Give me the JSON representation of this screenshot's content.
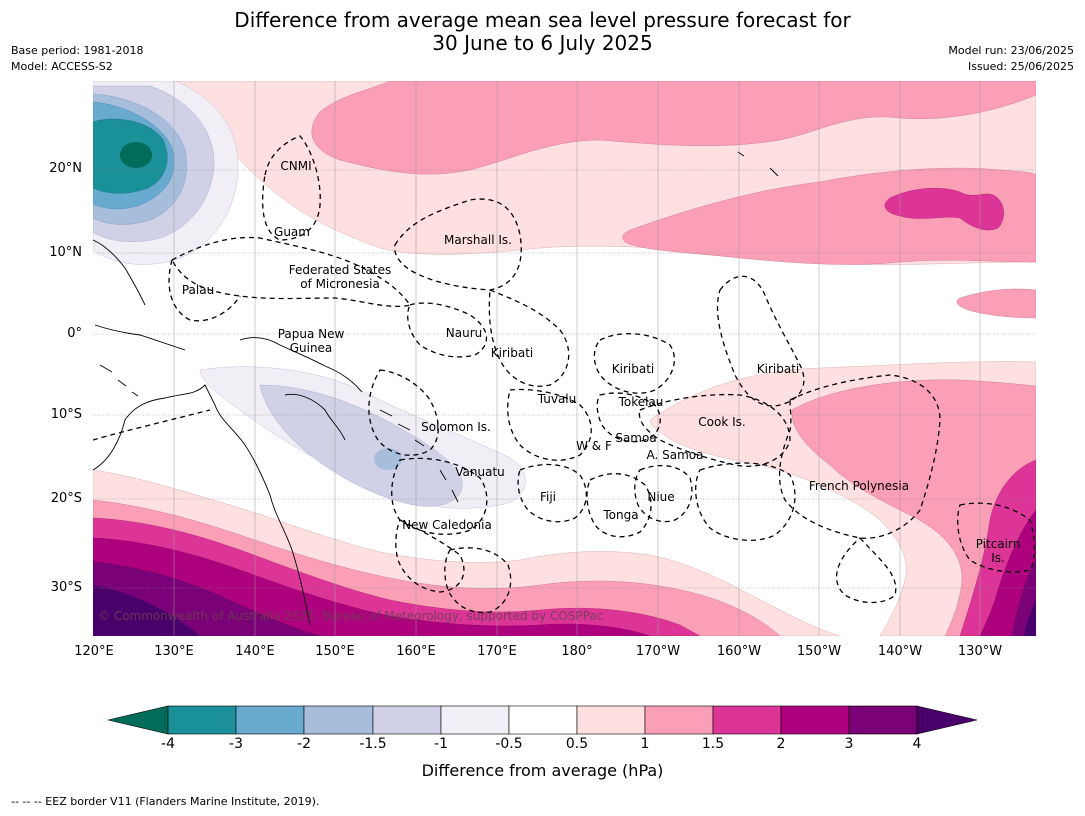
{
  "title": {
    "line1": "Difference from average mean sea level pressure forecast for",
    "line2": "30 June to 6 July 2025"
  },
  "meta": {
    "base_period": "Base period: 1981-2018",
    "model": "Model: ACCESS-S2",
    "model_run": "Model run: 23/06/2025",
    "issued": "Issued: 25/06/2025"
  },
  "axes": {
    "lat_labels": [
      "20°N",
      "10°N",
      "0°",
      "10°S",
      "20°S",
      "30°S"
    ],
    "lon_labels": [
      "120°E",
      "130°E",
      "140°E",
      "150°E",
      "160°E",
      "170°E",
      "180°",
      "170°W",
      "160°W",
      "150°W",
      "140°W",
      "130°W"
    ]
  },
  "regions": [
    {
      "id": "cnmi",
      "lines": [
        "CNMI"
      ]
    },
    {
      "id": "guam",
      "lines": [
        "Guam"
      ]
    },
    {
      "id": "marshall",
      "lines": [
        "Marshall Is."
      ]
    },
    {
      "id": "fsm",
      "lines": [
        "Federated States",
        "of Micronesia"
      ]
    },
    {
      "id": "palau",
      "lines": [
        "Palau"
      ]
    },
    {
      "id": "png",
      "lines": [
        "Papua New",
        "Guinea"
      ]
    },
    {
      "id": "nauru",
      "lines": [
        "Nauru"
      ]
    },
    {
      "id": "kiribati-w",
      "lines": [
        "Kiribati"
      ]
    },
    {
      "id": "kiribati-c",
      "lines": [
        "Kiribati"
      ]
    },
    {
      "id": "kiribati-e",
      "lines": [
        "Kiribati"
      ]
    },
    {
      "id": "tuvalu",
      "lines": [
        "Tuvalu"
      ]
    },
    {
      "id": "tokelau",
      "lines": [
        "Tokelau"
      ]
    },
    {
      "id": "cook",
      "lines": [
        "Cook Is."
      ]
    },
    {
      "id": "solomon",
      "lines": [
        "Solomon Is."
      ]
    },
    {
      "id": "wf",
      "lines": [
        "W & F"
      ]
    },
    {
      "id": "samoa",
      "lines": [
        "Samoa"
      ]
    },
    {
      "id": "asamoa",
      "lines": [
        "A. Samoa"
      ]
    },
    {
      "id": "vanuatu",
      "lines": [
        "Vanuatu"
      ]
    },
    {
      "id": "fiji",
      "lines": [
        "Fiji"
      ]
    },
    {
      "id": "niue",
      "lines": [
        "Niue"
      ]
    },
    {
      "id": "tonga",
      "lines": [
        "Tonga"
      ]
    },
    {
      "id": "frpoly",
      "lines": [
        "French Polynesia"
      ]
    },
    {
      "id": "newcal",
      "lines": [
        "New Caledonia"
      ]
    },
    {
      "id": "pitcairn",
      "lines": [
        "Pitcairn",
        "Is."
      ]
    }
  ],
  "copyright": "© Commonwealth of Australia 2025, Bureau of Meteorology, supported by COSPPac",
  "colorbar": {
    "ticks": [
      "-4",
      "-3",
      "-2",
      "-1.5",
      "-1",
      "-0.5",
      "0.5",
      "1",
      "1.5",
      "2",
      "3",
      "4"
    ],
    "colors": [
      "#1a9099",
      "#67a9cf",
      "#a6bddb",
      "#d0d1e6",
      "#f1eef6",
      "#ffffff",
      "#fde0df",
      "#fa9fb5",
      "#dd3497",
      "#ae017e",
      "#7a0177"
    ],
    "under_color": "#016c59",
    "over_color": "#49006a",
    "label": "Difference from average (hPa)"
  },
  "footnote": "--  --  -- EEZ border V11 (Flanders Marine Institute, 2019)."
}
